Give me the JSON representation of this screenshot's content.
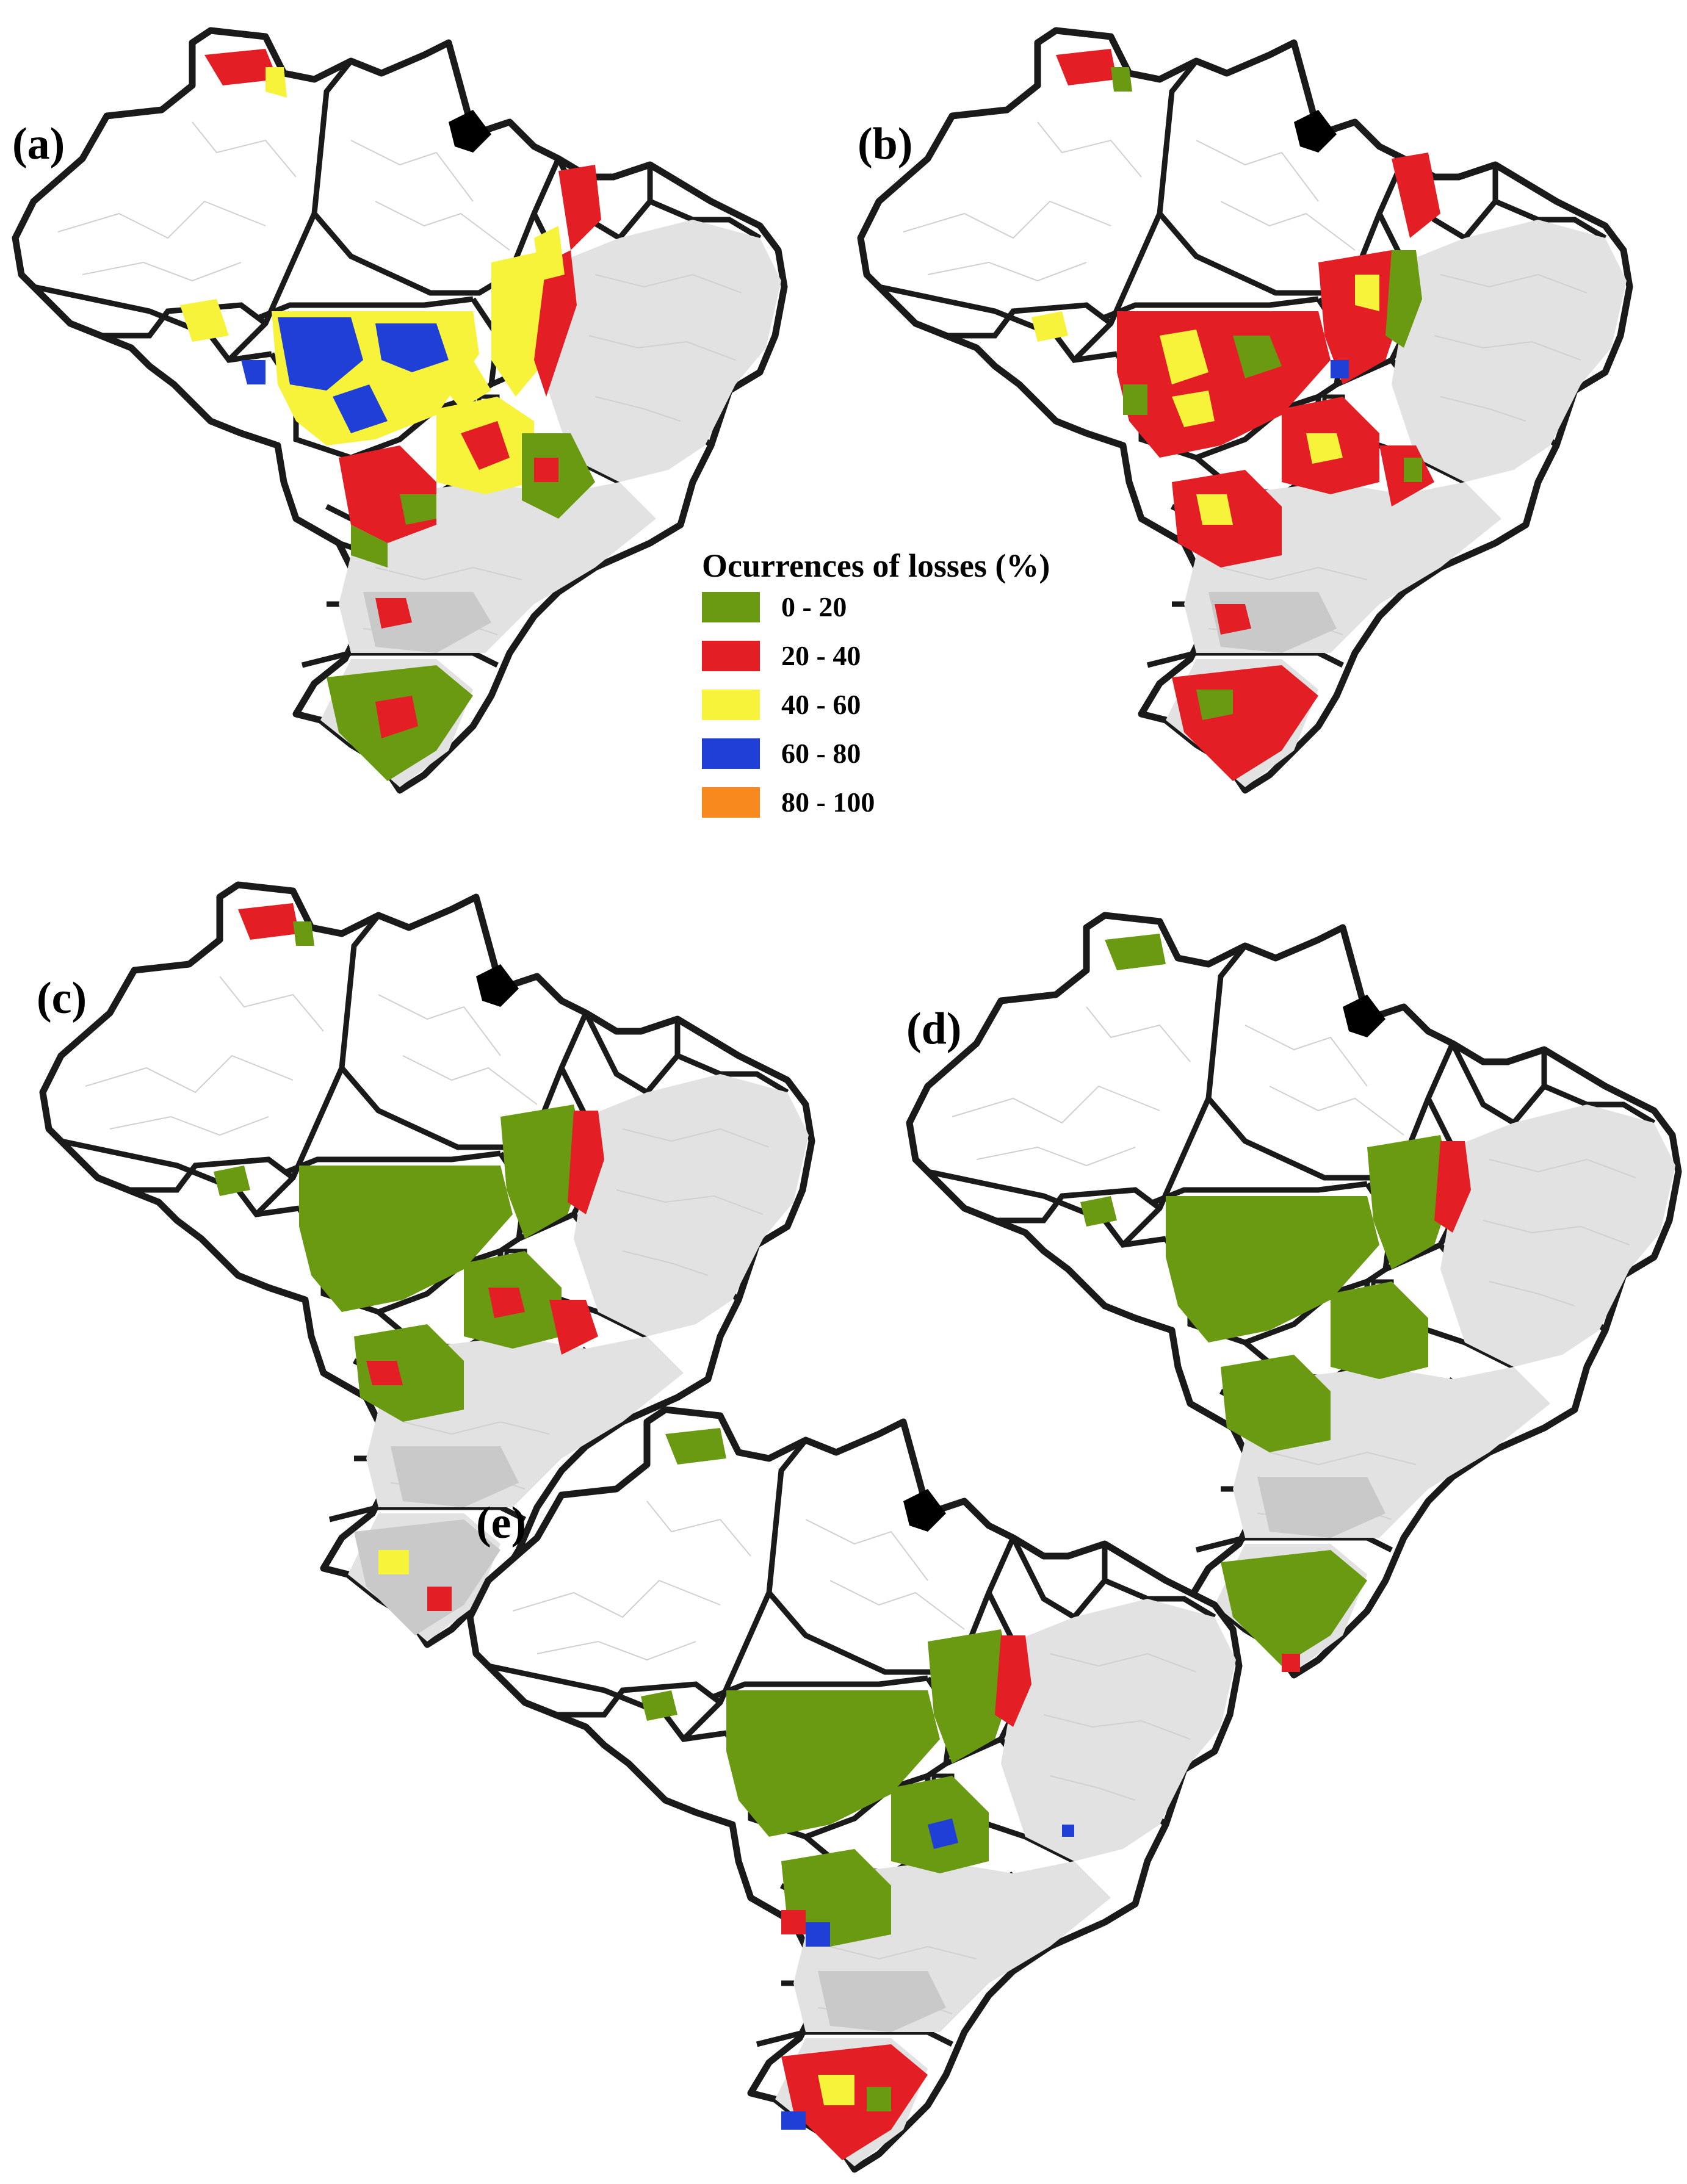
{
  "panels": [
    {
      "label": "(a)",
      "scheme": "a"
    },
    {
      "label": "(b)",
      "scheme": "b"
    },
    {
      "label": "(c)",
      "scheme": "c"
    },
    {
      "label": "(d)",
      "scheme": "d"
    },
    {
      "label": "(e)",
      "scheme": "e"
    }
  ],
  "legend": {
    "title": "Ocurrences of losses (%)",
    "classes": [
      {
        "label": "0 - 20",
        "color": "#6a9a12"
      },
      {
        "label": "20 - 40",
        "color": "#e31e24"
      },
      {
        "label": "40 - 60",
        "color": "#f7f33a"
      },
      {
        "label": "60 - 80",
        "color": "#1f3fd6"
      },
      {
        "label": "80 - 100",
        "color": "#f7891e"
      }
    ]
  },
  "colors": {
    "background_land": "#ffffff",
    "dense_municipalities": "#e2e2e2",
    "state_border": "#1a1a1a",
    "municipal_lines": "#c8c8c8"
  }
}
